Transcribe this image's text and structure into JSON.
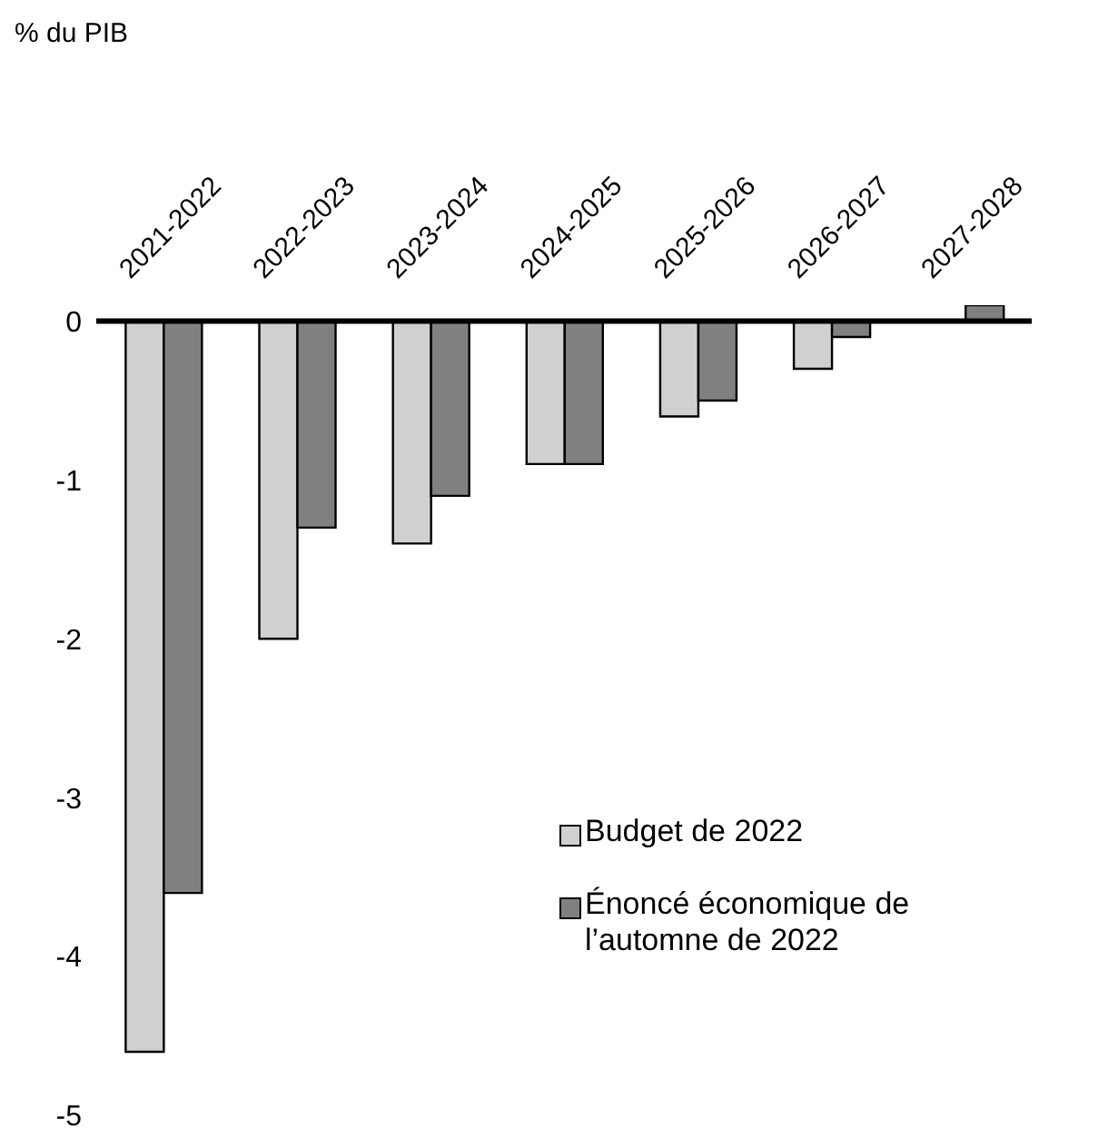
{
  "chart_data": {
    "type": "bar",
    "annotations": [
      "% du PIB"
    ],
    "categories": [
      "2021-2022",
      "2022-2023",
      "2023-2024",
      "2024-2025",
      "2025-2026",
      "2026-2027",
      "2027-2028"
    ],
    "series": [
      {
        "name": "Budget de 2022",
        "color": "#d0d0d0",
        "values": [
          -4.6,
          -2.0,
          -1.4,
          -0.9,
          -0.6,
          -0.3,
          null
        ]
      },
      {
        "name": "Énoncé économique de l’automne de 2022",
        "color": "#808080",
        "values": [
          -3.6,
          -1.3,
          -1.1,
          -0.9,
          -0.5,
          -0.1,
          0.1
        ]
      }
    ],
    "ylim": [
      -5,
      0.1
    ],
    "yticks": [
      -5,
      -4,
      -3,
      -2,
      -1,
      0
    ],
    "legend": "bottom right"
  }
}
